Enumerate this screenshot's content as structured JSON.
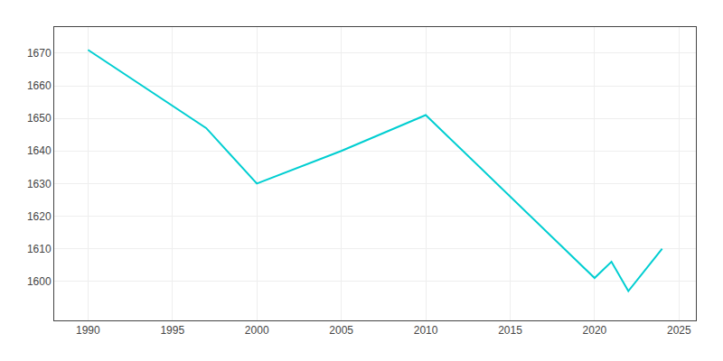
{
  "chart_data": {
    "type": "line",
    "x": [
      1990,
      1997,
      2000,
      2005,
      2010,
      2020,
      2021,
      2022,
      2024
    ],
    "values": [
      1671,
      1647,
      1630,
      1640,
      1651,
      1601,
      1606,
      1597,
      1610
    ],
    "color": "#00CED1",
    "xlim": [
      1988,
      2026
    ],
    "ylim": [
      1588,
      1678
    ],
    "xticks": [
      1990,
      1995,
      2000,
      2005,
      2010,
      2015,
      2020,
      2025
    ],
    "yticks": [
      1600,
      1610,
      1620,
      1630,
      1640,
      1650,
      1660,
      1670
    ],
    "grid": true
  }
}
